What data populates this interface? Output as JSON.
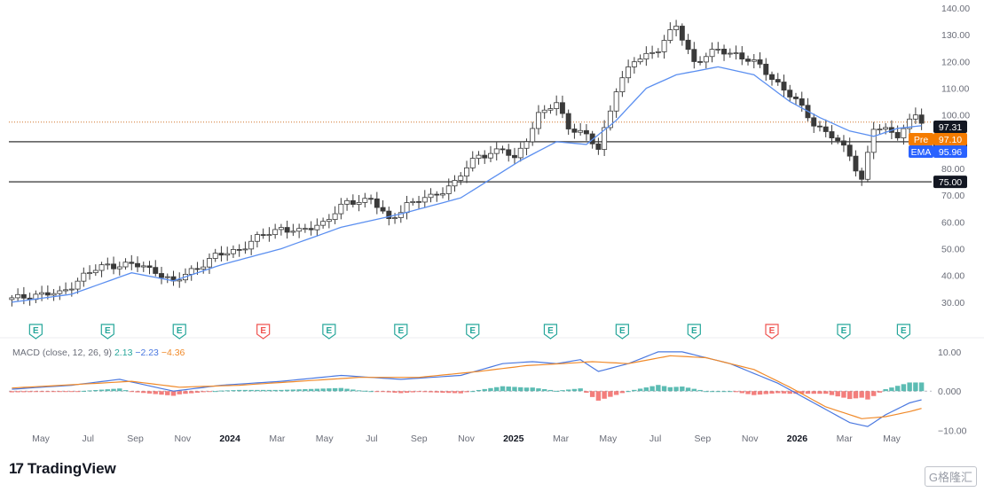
{
  "brand": {
    "logo": "17",
    "name": "TradingView"
  },
  "watermark": "G格隆汇",
  "chart_data": {
    "type": "candlestick",
    "colors": {
      "up_body": "#ffffff",
      "down_body": "#3a3a3a",
      "wick": "#3a3a3a",
      "ema": "#5b8ff0",
      "price_line": "#d2742a",
      "level_line": "#555555",
      "macd": "#4a78e0",
      "signal": "#f08a2a",
      "hist_pos": "#26a69a",
      "hist_neg": "#ef5350",
      "earn_green": "#26a69a",
      "earn_red": "#ef5350"
    },
    "y_axis": {
      "min": 25,
      "max": 140,
      "ticks": [
        "140.00",
        "130.00",
        "120.00",
        "110.00",
        "100.00",
        "90.00",
        "80.00",
        "70.00",
        "60.00",
        "50.00",
        "40.00",
        "30.00"
      ]
    },
    "x_axis": {
      "labels": [
        {
          "text": "May",
          "bold": false
        },
        {
          "text": "Jul",
          "bold": false
        },
        {
          "text": "Sep",
          "bold": false
        },
        {
          "text": "Nov",
          "bold": false
        },
        {
          "text": "2024",
          "bold": true
        },
        {
          "text": "Mar",
          "bold": false
        },
        {
          "text": "May",
          "bold": false
        },
        {
          "text": "Jul",
          "bold": false
        },
        {
          "text": "Sep",
          "bold": false
        },
        {
          "text": "Nov",
          "bold": false
        },
        {
          "text": "2025",
          "bold": true
        },
        {
          "text": "Mar",
          "bold": false
        },
        {
          "text": "May",
          "bold": false
        },
        {
          "text": "Jul",
          "bold": false
        },
        {
          "text": "Sep",
          "bold": false
        },
        {
          "text": "Nov",
          "bold": false
        },
        {
          "text": "2026",
          "bold": true
        },
        {
          "text": "Mar",
          "bold": false
        },
        {
          "text": "May",
          "bold": false
        }
      ]
    },
    "levels": [
      {
        "value": 90.0,
        "label": "90.00"
      },
      {
        "value": 75.0,
        "label": "75.00"
      }
    ],
    "price_tags": [
      {
        "label": "",
        "value_text": "97.31",
        "value": 97.31,
        "bg": "#131722",
        "fg": "#ffffff"
      },
      {
        "label": "Pre",
        "value_text": "97.10",
        "value": 97.1,
        "bg": "#f57c00",
        "fg": "#ffffff"
      },
      {
        "label": "EMA",
        "value_text": "95.96",
        "value": 95.96,
        "bg": "#2962ff",
        "fg": "#ffffff"
      }
    ],
    "price_keypoints": [
      [
        0,
        31
      ],
      [
        4,
        33
      ],
      [
        8,
        33
      ],
      [
        12,
        40
      ],
      [
        16,
        44
      ],
      [
        20,
        44
      ],
      [
        24,
        42
      ],
      [
        27,
        37
      ],
      [
        30,
        42
      ],
      [
        34,
        47
      ],
      [
        38,
        50
      ],
      [
        42,
        55
      ],
      [
        45,
        58
      ],
      [
        48,
        56
      ],
      [
        52,
        60
      ],
      [
        56,
        67
      ],
      [
        60,
        69
      ],
      [
        63,
        60
      ],
      [
        66,
        67
      ],
      [
        70,
        69
      ],
      [
        74,
        75
      ],
      [
        78,
        85
      ],
      [
        82,
        87
      ],
      [
        84,
        83
      ],
      [
        88,
        100
      ],
      [
        91,
        104
      ],
      [
        93,
        96
      ],
      [
        96,
        92
      ],
      [
        98,
        87
      ],
      [
        101,
        110
      ],
      [
        104,
        120
      ],
      [
        108,
        125
      ],
      [
        111,
        133
      ],
      [
        114,
        120
      ],
      [
        118,
        124
      ],
      [
        121,
        123
      ],
      [
        125,
        118
      ],
      [
        128,
        112
      ],
      [
        131,
        105
      ],
      [
        134,
        97
      ],
      [
        137,
        92
      ],
      [
        140,
        85
      ],
      [
        142,
        76
      ],
      [
        144,
        95
      ],
      [
        148,
        93
      ],
      [
        151,
        100
      ],
      [
        152,
        97
      ]
    ],
    "ema_keypoints": [
      [
        0,
        30
      ],
      [
        10,
        33
      ],
      [
        20,
        41
      ],
      [
        27,
        38
      ],
      [
        35,
        44
      ],
      [
        45,
        50
      ],
      [
        55,
        58
      ],
      [
        65,
        63
      ],
      [
        75,
        69
      ],
      [
        80,
        76
      ],
      [
        85,
        83
      ],
      [
        91,
        90
      ],
      [
        96,
        89
      ],
      [
        101,
        98
      ],
      [
        106,
        110
      ],
      [
        111,
        115
      ],
      [
        118,
        118
      ],
      [
        124,
        115
      ],
      [
        130,
        105
      ],
      [
        135,
        99
      ],
      [
        140,
        94
      ],
      [
        144,
        92
      ],
      [
        148,
        95
      ],
      [
        152,
        96
      ]
    ],
    "macd": {
      "title": "MACD (close, 12, 26, 9)",
      "hist_text": "2.13",
      "macd_text": "−2.23",
      "signal_text": "−4.36",
      "y_ticks": [
        "10.00",
        "0.000",
        "−10.00"
      ],
      "y_min": -11,
      "y_max": 12,
      "macd_keypoints": [
        [
          0,
          0.5
        ],
        [
          10,
          1.5
        ],
        [
          18,
          3
        ],
        [
          27,
          0
        ],
        [
          35,
          1.5
        ],
        [
          45,
          2.5
        ],
        [
          55,
          4
        ],
        [
          65,
          3
        ],
        [
          75,
          4
        ],
        [
          82,
          7
        ],
        [
          87,
          7.5
        ],
        [
          91,
          7
        ],
        [
          95,
          8
        ],
        [
          98,
          5
        ],
        [
          103,
          7
        ],
        [
          108,
          10
        ],
        [
          112,
          10
        ],
        [
          120,
          7
        ],
        [
          128,
          2
        ],
        [
          134,
          -3
        ],
        [
          140,
          -8
        ],
        [
          143,
          -9
        ],
        [
          146,
          -6
        ],
        [
          150,
          -3
        ],
        [
          152,
          -2.2
        ]
      ],
      "signal_keypoints": [
        [
          0,
          0.8
        ],
        [
          12,
          1.8
        ],
        [
          20,
          2.5
        ],
        [
          28,
          1
        ],
        [
          38,
          1.5
        ],
        [
          48,
          2.5
        ],
        [
          58,
          3.5
        ],
        [
          68,
          3.5
        ],
        [
          78,
          5
        ],
        [
          86,
          6.5
        ],
        [
          92,
          7
        ],
        [
          97,
          7.5
        ],
        [
          103,
          7
        ],
        [
          110,
          9
        ],
        [
          116,
          8.5
        ],
        [
          124,
          5.5
        ],
        [
          130,
          1
        ],
        [
          136,
          -4
        ],
        [
          142,
          -7
        ],
        [
          146,
          -6.5
        ],
        [
          150,
          -5.2
        ],
        [
          152,
          -4.4
        ]
      ]
    },
    "earnings": [
      {
        "x": 4,
        "type": "green",
        "label": "E"
      },
      {
        "x": 16,
        "type": "green",
        "label": "E"
      },
      {
        "x": 28,
        "type": "green",
        "label": "E"
      },
      {
        "x": 42,
        "type": "red",
        "label": "E"
      },
      {
        "x": 53,
        "type": "green",
        "label": "E"
      },
      {
        "x": 65,
        "type": "green",
        "label": "E"
      },
      {
        "x": 77,
        "type": "green",
        "label": "E"
      },
      {
        "x": 90,
        "type": "green",
        "label": "E"
      },
      {
        "x": 102,
        "type": "green",
        "label": "E"
      },
      {
        "x": 114,
        "type": "green",
        "label": "E"
      },
      {
        "x": 127,
        "type": "red",
        "label": "E"
      },
      {
        "x": 139,
        "type": "green",
        "label": "E"
      },
      {
        "x": 149,
        "type": "green",
        "label": "E"
      }
    ]
  }
}
